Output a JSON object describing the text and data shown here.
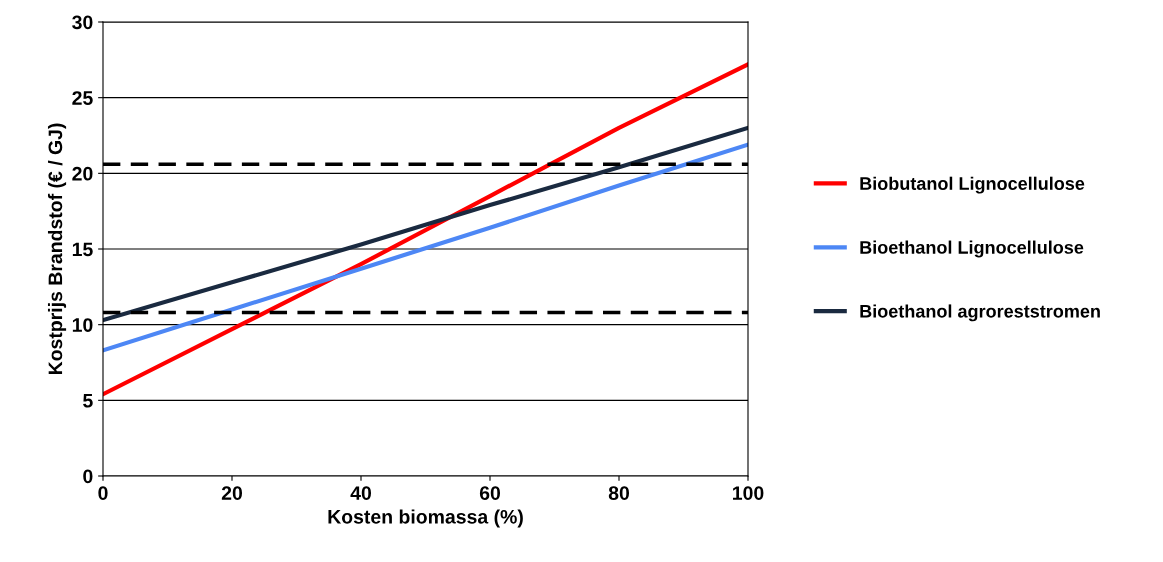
{
  "chart_data": {
    "type": "line",
    "xlabel": "Kosten biomassa (%)",
    "ylabel": "Kostprijs Brandstof (€ / GJ)",
    "x": [
      0,
      20,
      40,
      60,
      80,
      100
    ],
    "series": [
      {
        "name": "Biobutanol Lignocellulose",
        "color": "#ff0000",
        "values": [
          5.4,
          9.7,
          14.0,
          18.5,
          23.0,
          27.2
        ]
      },
      {
        "name": "Bioethanol Lignocellulose",
        "color": "#4d87f5",
        "values": [
          8.3,
          11.0,
          13.7,
          16.4,
          19.2,
          21.9
        ]
      },
      {
        "name": "Bioethanol agroreststromen",
        "color": "#1a2a40",
        "values": [
          10.3,
          12.8,
          15.3,
          17.9,
          20.4,
          23.0
        ]
      }
    ],
    "ref_lines": [
      {
        "axis": "y",
        "value": 20.6,
        "color": "#000000",
        "line_style": "dashed"
      },
      {
        "axis": "y",
        "value": 10.8,
        "color": "#000000",
        "line_style": "dashed"
      }
    ],
    "xlim": [
      0,
      100
    ],
    "xticks": [
      0,
      20,
      40,
      60,
      80,
      100
    ],
    "ylim": [
      0,
      30
    ],
    "yticks": [
      0,
      5,
      10,
      15,
      20,
      25,
      30
    ],
    "grid": "y",
    "legend": "right",
    "line_style": "solid"
  }
}
